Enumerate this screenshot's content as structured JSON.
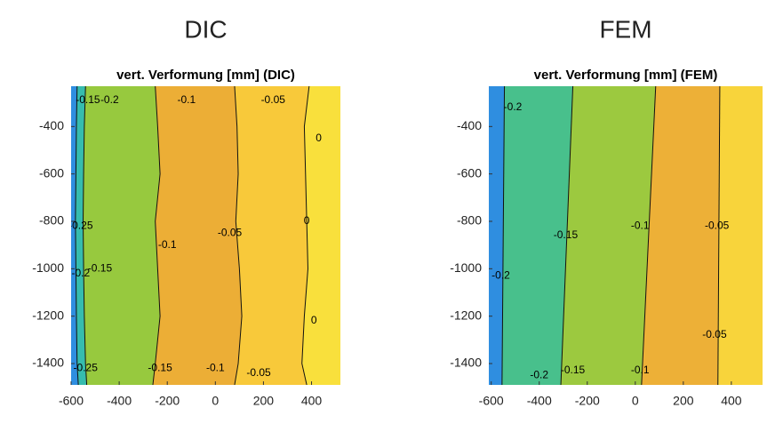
{
  "chart_data": [
    {
      "type": "contour",
      "heading": "DIC",
      "title": "vert. Verformung [mm] (DIC)",
      "xlim": [
        -600,
        520
      ],
      "ylim": [
        -1490,
        -230
      ],
      "xticks": [
        -600,
        -400,
        -200,
        0,
        200,
        400
      ],
      "yticks": [
        -400,
        -600,
        -800,
        -1000,
        -1200,
        -1400
      ],
      "boundary_y": [
        -230,
        -400,
        -600,
        -800,
        -1000,
        -1200,
        -1400,
        -1490
      ],
      "bands": [
        {
          "level": -0.25,
          "color": "#2f8ee0"
        },
        {
          "level": -0.2,
          "color": "#36bcae",
          "x": [
            -575,
            -578,
            -580,
            -582,
            -580,
            -578,
            -575,
            -570
          ]
        },
        {
          "level": -0.15,
          "color": "#97c93e",
          "x": [
            -540,
            -545,
            -548,
            -550,
            -548,
            -545,
            -540,
            -535
          ]
        },
        {
          "level": -0.1,
          "color": "#ecae36",
          "x": [
            -250,
            -240,
            -230,
            -250,
            -240,
            -230,
            -250,
            -260
          ]
        },
        {
          "level": -0.05,
          "color": "#f8c93a",
          "x": [
            80,
            90,
            95,
            85,
            100,
            110,
            95,
            80
          ]
        },
        {
          "level": 0,
          "color": "#f9e03c",
          "x": [
            390,
            370,
            375,
            380,
            385,
            370,
            360,
            380
          ]
        }
      ],
      "contour_labels": [
        {
          "value": -0.15,
          "x": -530,
          "y": -290
        },
        {
          "value": -0.2,
          "x": -440,
          "y": -290
        },
        {
          "value": -0.1,
          "x": -120,
          "y": -290
        },
        {
          "value": -0.05,
          "x": 240,
          "y": -290
        },
        {
          "value": 0,
          "x": 430,
          "y": -450
        },
        {
          "value": -0.25,
          "x": -560,
          "y": -820
        },
        {
          "value": -0.2,
          "x": -560,
          "y": -1020
        },
        {
          "value": -0.15,
          "x": -480,
          "y": -1000
        },
        {
          "value": -0.1,
          "x": -200,
          "y": -900
        },
        {
          "value": -0.05,
          "x": 60,
          "y": -850
        },
        {
          "value": 0,
          "x": 380,
          "y": -800
        },
        {
          "value": 0,
          "x": 410,
          "y": -1220
        },
        {
          "value": -0.25,
          "x": -540,
          "y": -1420
        },
        {
          "value": -0.15,
          "x": -230,
          "y": -1420
        },
        {
          "value": -0.1,
          "x": 0,
          "y": -1420
        },
        {
          "value": -0.05,
          "x": 180,
          "y": -1440
        }
      ]
    },
    {
      "type": "contour",
      "heading": "FEM",
      "title": "vert. Verformung [mm] (FEM)",
      "xlim": [
        -610,
        530
      ],
      "ylim": [
        -1490,
        -230
      ],
      "xticks": [
        -600,
        -400,
        -200,
        0,
        200,
        400
      ],
      "yticks": [
        -400,
        -600,
        -800,
        -1000,
        -1200,
        -1400
      ],
      "boundary_y": [
        -230,
        -1490
      ],
      "bands": [
        {
          "level": -0.25,
          "color": "#2f8ee0"
        },
        {
          "level": -0.2,
          "color": "#48c08c",
          "x": [
            -545,
            -555
          ]
        },
        {
          "level": -0.15,
          "color": "#9cc93f",
          "x": [
            -260,
            -310
          ]
        },
        {
          "level": -0.1,
          "color": "#edb037",
          "x": [
            85,
            26
          ]
        },
        {
          "level": -0.05,
          "color": "#f8d43b",
          "x": [
            352,
            344
          ]
        }
      ],
      "contour_labels": [
        {
          "value": -0.2,
          "x": -510,
          "y": -320
        },
        {
          "value": -0.15,
          "x": -290,
          "y": -860
        },
        {
          "value": -0.1,
          "x": 20,
          "y": -820
        },
        {
          "value": -0.05,
          "x": 340,
          "y": -820
        },
        {
          "value": -0.2,
          "x": -560,
          "y": -1030
        },
        {
          "value": -0.05,
          "x": 330,
          "y": -1280
        },
        {
          "value": -0.2,
          "x": -400,
          "y": -1450
        },
        {
          "value": -0.15,
          "x": -260,
          "y": -1430
        },
        {
          "value": -0.1,
          "x": 20,
          "y": -1430
        }
      ]
    }
  ]
}
